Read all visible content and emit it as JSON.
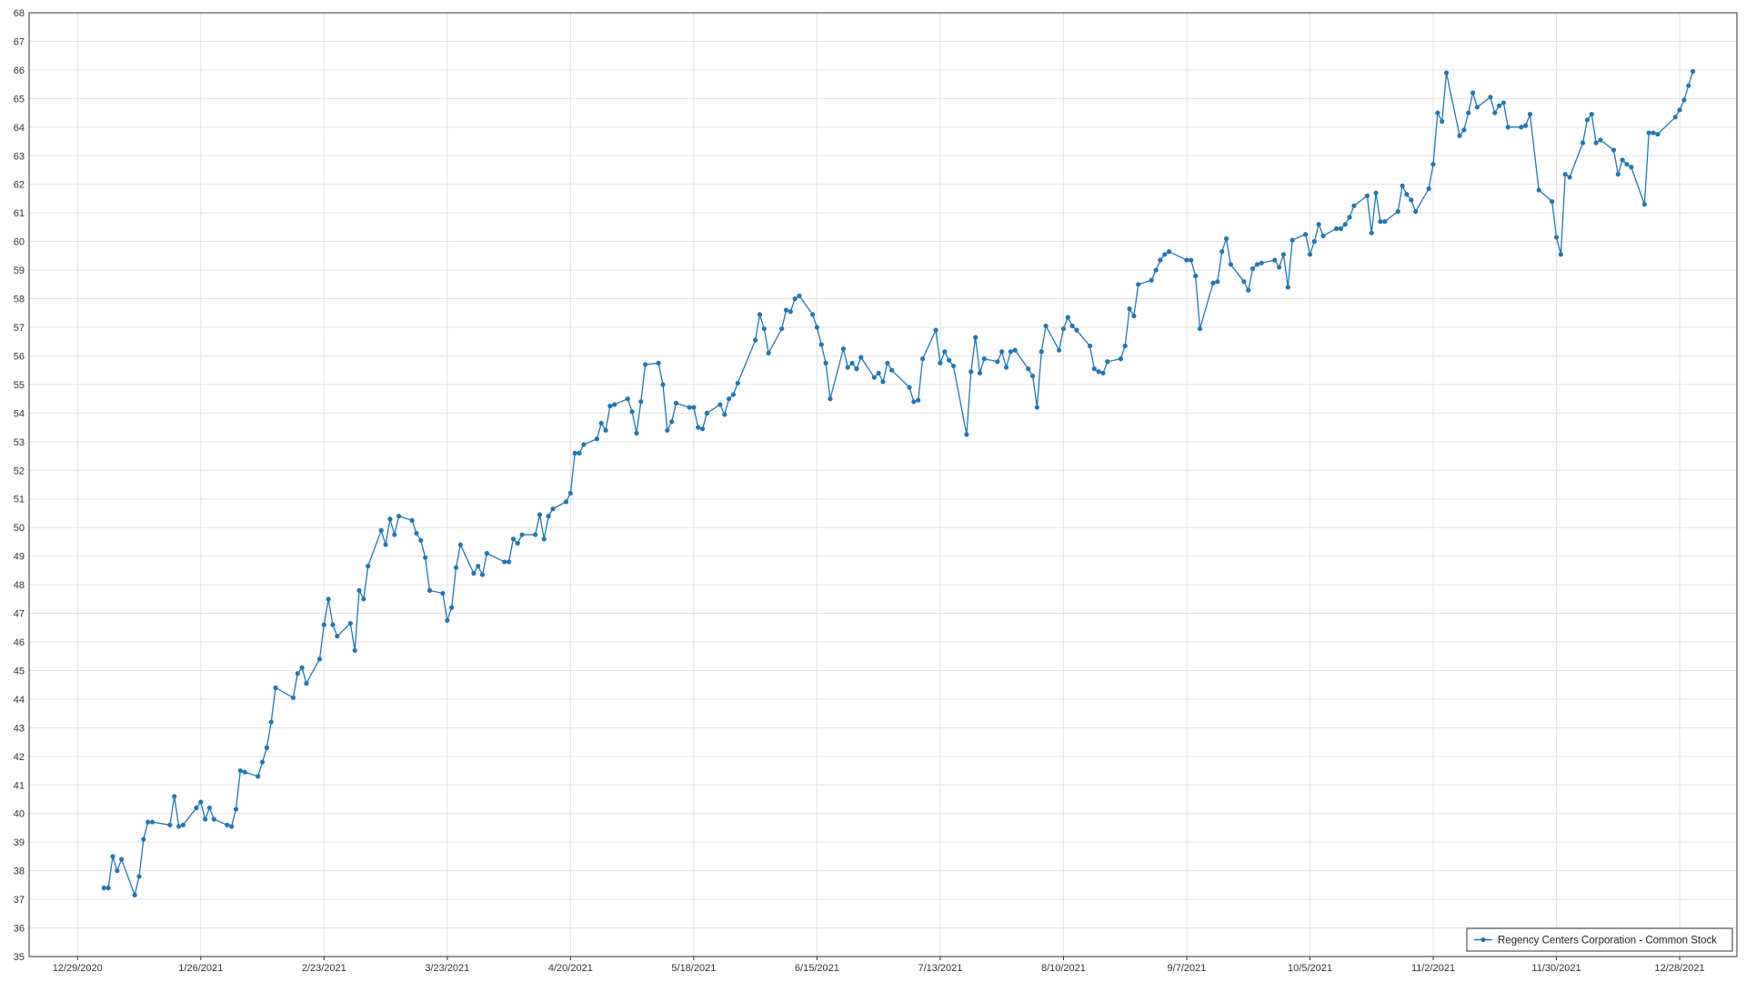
{
  "chart_data": {
    "type": "line",
    "title": "",
    "xlabel": "",
    "ylabel": "",
    "ylim": [
      35,
      68
    ],
    "xlim": [
      "2020-12-18",
      "2022-01-10"
    ],
    "yticks": [
      35,
      36,
      37,
      38,
      39,
      40,
      41,
      42,
      43,
      44,
      45,
      46,
      47,
      48,
      49,
      50,
      51,
      52,
      53,
      54,
      55,
      56,
      57,
      58,
      59,
      60,
      61,
      62,
      63,
      64,
      65,
      66,
      67,
      68
    ],
    "xticks": [
      {
        "date": "2020-12-29",
        "label": "12/29/2020"
      },
      {
        "date": "2021-01-26",
        "label": "1/26/2021"
      },
      {
        "date": "2021-02-23",
        "label": "2/23/2021"
      },
      {
        "date": "2021-03-23",
        "label": "3/23/2021"
      },
      {
        "date": "2021-04-20",
        "label": "4/20/2021"
      },
      {
        "date": "2021-05-18",
        "label": "5/18/2021"
      },
      {
        "date": "2021-06-15",
        "label": "6/15/2021"
      },
      {
        "date": "2021-07-13",
        "label": "7/13/2021"
      },
      {
        "date": "2021-08-10",
        "label": "8/10/2021"
      },
      {
        "date": "2021-09-07",
        "label": "9/7/2021"
      },
      {
        "date": "2021-10-05",
        "label": "10/5/2021"
      },
      {
        "date": "2021-11-02",
        "label": "11/2/2021"
      },
      {
        "date": "2021-11-30",
        "label": "11/30/2021"
      },
      {
        "date": "2021-12-28",
        "label": "12/28/2021"
      }
    ],
    "grid": true,
    "legend_position": "bottom-right",
    "colors": {
      "series": "#1f77b4",
      "grid": "#e2e2e2",
      "axis": "#333333"
    },
    "series": [
      {
        "name": "Regency Centers Corporation - Common Stock",
        "points": [
          [
            "2021-01-04",
            37.4
          ],
          [
            "2021-01-05",
            37.4
          ],
          [
            "2021-01-06",
            38.5
          ],
          [
            "2021-01-07",
            38.0
          ],
          [
            "2021-01-08",
            38.4
          ],
          [
            "2021-01-11",
            37.15
          ],
          [
            "2021-01-12",
            37.8
          ],
          [
            "2021-01-13",
            39.1
          ],
          [
            "2021-01-14",
            39.7
          ],
          [
            "2021-01-15",
            39.7
          ],
          [
            "2021-01-19",
            39.6
          ],
          [
            "2021-01-20",
            40.6
          ],
          [
            "2021-01-21",
            39.55
          ],
          [
            "2021-01-22",
            39.6
          ],
          [
            "2021-01-25",
            40.2
          ],
          [
            "2021-01-26",
            40.4
          ],
          [
            "2021-01-27",
            39.8
          ],
          [
            "2021-01-28",
            40.2
          ],
          [
            "2021-01-29",
            39.8
          ],
          [
            "2021-02-01",
            39.6
          ],
          [
            "2021-02-02",
            39.55
          ],
          [
            "2021-02-03",
            40.15
          ],
          [
            "2021-02-04",
            41.5
          ],
          [
            "2021-02-05",
            41.45
          ],
          [
            "2021-02-08",
            41.3
          ],
          [
            "2021-02-09",
            41.8
          ],
          [
            "2021-02-10",
            42.3
          ],
          [
            "2021-02-11",
            43.2
          ],
          [
            "2021-02-12",
            44.4
          ],
          [
            "2021-02-16",
            44.05
          ],
          [
            "2021-02-17",
            44.9
          ],
          [
            "2021-02-18",
            45.1
          ],
          [
            "2021-02-19",
            44.55
          ],
          [
            "2021-02-22",
            45.4
          ],
          [
            "2021-02-23",
            46.6
          ],
          [
            "2021-02-24",
            47.5
          ],
          [
            "2021-02-25",
            46.6
          ],
          [
            "2021-02-26",
            46.2
          ],
          [
            "2021-03-01",
            46.65
          ],
          [
            "2021-03-02",
            45.7
          ],
          [
            "2021-03-03",
            47.8
          ],
          [
            "2021-03-04",
            47.5
          ],
          [
            "2021-03-05",
            48.65
          ],
          [
            "2021-03-08",
            49.9
          ],
          [
            "2021-03-09",
            49.4
          ],
          [
            "2021-03-10",
            50.3
          ],
          [
            "2021-03-11",
            49.75
          ],
          [
            "2021-03-12",
            50.4
          ],
          [
            "2021-03-15",
            50.25
          ],
          [
            "2021-03-16",
            49.8
          ],
          [
            "2021-03-17",
            49.55
          ],
          [
            "2021-03-18",
            48.95
          ],
          [
            "2021-03-19",
            47.8
          ],
          [
            "2021-03-22",
            47.7
          ],
          [
            "2021-03-23",
            46.75
          ],
          [
            "2021-03-24",
            47.2
          ],
          [
            "2021-03-25",
            48.6
          ],
          [
            "2021-03-26",
            49.4
          ],
          [
            "2021-03-29",
            48.4
          ],
          [
            "2021-03-30",
            48.65
          ],
          [
            "2021-03-31",
            48.35
          ],
          [
            "2021-04-01",
            49.1
          ],
          [
            "2021-04-05",
            48.8
          ],
          [
            "2021-04-06",
            48.8
          ],
          [
            "2021-04-07",
            49.6
          ],
          [
            "2021-04-08",
            49.45
          ],
          [
            "2021-04-09",
            49.75
          ],
          [
            "2021-04-12",
            49.75
          ],
          [
            "2021-04-13",
            50.45
          ],
          [
            "2021-04-14",
            49.6
          ],
          [
            "2021-04-15",
            50.4
          ],
          [
            "2021-04-16",
            50.65
          ],
          [
            "2021-04-19",
            50.9
          ],
          [
            "2021-04-20",
            51.2
          ],
          [
            "2021-04-21",
            52.6
          ],
          [
            "2021-04-22",
            52.6
          ],
          [
            "2021-04-23",
            52.9
          ],
          [
            "2021-04-26",
            53.1
          ],
          [
            "2021-04-27",
            53.65
          ],
          [
            "2021-04-28",
            53.4
          ],
          [
            "2021-04-29",
            54.25
          ],
          [
            "2021-04-30",
            54.3
          ],
          [
            "2021-05-03",
            54.5
          ],
          [
            "2021-05-04",
            54.05
          ],
          [
            "2021-05-05",
            53.3
          ],
          [
            "2021-05-06",
            54.4
          ],
          [
            "2021-05-07",
            55.7
          ],
          [
            "2021-05-10",
            55.75
          ],
          [
            "2021-05-11",
            55.0
          ],
          [
            "2021-05-12",
            53.4
          ],
          [
            "2021-05-13",
            53.7
          ],
          [
            "2021-05-14",
            54.35
          ],
          [
            "2021-05-17",
            54.2
          ],
          [
            "2021-05-18",
            54.2
          ],
          [
            "2021-05-19",
            53.5
          ],
          [
            "2021-05-20",
            53.45
          ],
          [
            "2021-05-21",
            54.0
          ],
          [
            "2021-05-24",
            54.3
          ],
          [
            "2021-05-25",
            53.95
          ],
          [
            "2021-05-26",
            54.5
          ],
          [
            "2021-05-27",
            54.65
          ],
          [
            "2021-05-28",
            55.05
          ],
          [
            "2021-06-01",
            56.55
          ],
          [
            "2021-06-02",
            57.45
          ],
          [
            "2021-06-03",
            56.95
          ],
          [
            "2021-06-04",
            56.1
          ],
          [
            "2021-06-07",
            56.95
          ],
          [
            "2021-06-08",
            57.6
          ],
          [
            "2021-06-09",
            57.55
          ],
          [
            "2021-06-10",
            58.0
          ],
          [
            "2021-06-11",
            58.1
          ],
          [
            "2021-06-14",
            57.45
          ],
          [
            "2021-06-15",
            57.0
          ],
          [
            "2021-06-16",
            56.4
          ],
          [
            "2021-06-17",
            55.75
          ],
          [
            "2021-06-18",
            54.5
          ],
          [
            "2021-06-21",
            56.25
          ],
          [
            "2021-06-22",
            55.6
          ],
          [
            "2021-06-23",
            55.75
          ],
          [
            "2021-06-24",
            55.55
          ],
          [
            "2021-06-25",
            55.95
          ],
          [
            "2021-06-28",
            55.25
          ],
          [
            "2021-06-29",
            55.4
          ],
          [
            "2021-06-30",
            55.1
          ],
          [
            "2021-07-01",
            55.75
          ],
          [
            "2021-07-02",
            55.5
          ],
          [
            "2021-07-06",
            54.9
          ],
          [
            "2021-07-07",
            54.4
          ],
          [
            "2021-07-08",
            54.45
          ],
          [
            "2021-07-09",
            55.9
          ],
          [
            "2021-07-12",
            56.9
          ],
          [
            "2021-07-13",
            55.75
          ],
          [
            "2021-07-14",
            56.15
          ],
          [
            "2021-07-15",
            55.85
          ],
          [
            "2021-07-16",
            55.65
          ],
          [
            "2021-07-19",
            53.25
          ],
          [
            "2021-07-20",
            55.45
          ],
          [
            "2021-07-21",
            56.65
          ],
          [
            "2021-07-22",
            55.4
          ],
          [
            "2021-07-23",
            55.9
          ],
          [
            "2021-07-26",
            55.8
          ],
          [
            "2021-07-27",
            56.15
          ],
          [
            "2021-07-28",
            55.6
          ],
          [
            "2021-07-29",
            56.15
          ],
          [
            "2021-07-30",
            56.2
          ],
          [
            "2021-08-02",
            55.55
          ],
          [
            "2021-08-03",
            55.3
          ],
          [
            "2021-08-04",
            54.2
          ],
          [
            "2021-08-05",
            56.15
          ],
          [
            "2021-08-06",
            57.05
          ],
          [
            "2021-08-09",
            56.2
          ],
          [
            "2021-08-10",
            56.95
          ],
          [
            "2021-08-11",
            57.35
          ],
          [
            "2021-08-12",
            57.05
          ],
          [
            "2021-08-13",
            56.9
          ],
          [
            "2021-08-16",
            56.35
          ],
          [
            "2021-08-17",
            55.55
          ],
          [
            "2021-08-18",
            55.45
          ],
          [
            "2021-08-19",
            55.4
          ],
          [
            "2021-08-20",
            55.8
          ],
          [
            "2021-08-23",
            55.9
          ],
          [
            "2021-08-24",
            56.35
          ],
          [
            "2021-08-25",
            57.65
          ],
          [
            "2021-08-26",
            57.4
          ],
          [
            "2021-08-27",
            58.5
          ],
          [
            "2021-08-30",
            58.65
          ],
          [
            "2021-08-31",
            59.0
          ],
          [
            "2021-09-01",
            59.35
          ],
          [
            "2021-09-02",
            59.55
          ],
          [
            "2021-09-03",
            59.65
          ],
          [
            "2021-09-07",
            59.35
          ],
          [
            "2021-09-08",
            59.35
          ],
          [
            "2021-09-09",
            58.8
          ],
          [
            "2021-09-10",
            56.95
          ],
          [
            "2021-09-13",
            58.55
          ],
          [
            "2021-09-14",
            58.6
          ],
          [
            "2021-09-15",
            59.65
          ],
          [
            "2021-09-16",
            60.1
          ],
          [
            "2021-09-17",
            59.2
          ],
          [
            "2021-09-20",
            58.6
          ],
          [
            "2021-09-21",
            58.3
          ],
          [
            "2021-09-22",
            59.05
          ],
          [
            "2021-09-23",
            59.2
          ],
          [
            "2021-09-24",
            59.25
          ],
          [
            "2021-09-27",
            59.35
          ],
          [
            "2021-09-28",
            59.1
          ],
          [
            "2021-09-29",
            59.55
          ],
          [
            "2021-09-30",
            58.4
          ],
          [
            "2021-10-01",
            60.05
          ],
          [
            "2021-10-04",
            60.25
          ],
          [
            "2021-10-05",
            59.55
          ],
          [
            "2021-10-06",
            60.0
          ],
          [
            "2021-10-07",
            60.6
          ],
          [
            "2021-10-08",
            60.2
          ],
          [
            "2021-10-11",
            60.45
          ],
          [
            "2021-10-12",
            60.45
          ],
          [
            "2021-10-13",
            60.6
          ],
          [
            "2021-10-14",
            60.85
          ],
          [
            "2021-10-15",
            61.25
          ],
          [
            "2021-10-18",
            61.6
          ],
          [
            "2021-10-19",
            60.3
          ],
          [
            "2021-10-20",
            61.7
          ],
          [
            "2021-10-21",
            60.7
          ],
          [
            "2021-10-22",
            60.7
          ],
          [
            "2021-10-25",
            61.05
          ],
          [
            "2021-10-26",
            61.95
          ],
          [
            "2021-10-27",
            61.65
          ],
          [
            "2021-10-28",
            61.45
          ],
          [
            "2021-10-29",
            61.05
          ],
          [
            "2021-11-01",
            61.85
          ],
          [
            "2021-11-02",
            62.7
          ],
          [
            "2021-11-03",
            64.5
          ],
          [
            "2021-11-04",
            64.2
          ],
          [
            "2021-11-05",
            65.9
          ],
          [
            "2021-11-08",
            63.7
          ],
          [
            "2021-11-09",
            63.9
          ],
          [
            "2021-11-10",
            64.5
          ],
          [
            "2021-11-11",
            65.2
          ],
          [
            "2021-11-12",
            64.7
          ],
          [
            "2021-11-15",
            65.05
          ],
          [
            "2021-11-16",
            64.5
          ],
          [
            "2021-11-17",
            64.75
          ],
          [
            "2021-11-18",
            64.85
          ],
          [
            "2021-11-19",
            64.0
          ],
          [
            "2021-11-22",
            64.0
          ],
          [
            "2021-11-23",
            64.05
          ],
          [
            "2021-11-24",
            64.45
          ],
          [
            "2021-11-26",
            61.8
          ],
          [
            "2021-11-29",
            61.4
          ],
          [
            "2021-11-30",
            60.15
          ],
          [
            "2021-12-01",
            59.55
          ],
          [
            "2021-12-02",
            62.35
          ],
          [
            "2021-12-03",
            62.25
          ],
          [
            "2021-12-06",
            63.45
          ],
          [
            "2021-12-07",
            64.25
          ],
          [
            "2021-12-08",
            64.45
          ],
          [
            "2021-12-09",
            63.45
          ],
          [
            "2021-12-10",
            63.55
          ],
          [
            "2021-12-13",
            63.2
          ],
          [
            "2021-12-14",
            62.35
          ],
          [
            "2021-12-15",
            62.85
          ],
          [
            "2021-12-16",
            62.7
          ],
          [
            "2021-12-17",
            62.6
          ],
          [
            "2021-12-20",
            61.3
          ],
          [
            "2021-12-21",
            63.8
          ],
          [
            "2021-12-22",
            63.8
          ],
          [
            "2021-12-23",
            63.75
          ],
          [
            "2021-12-27",
            64.35
          ],
          [
            "2021-12-28",
            64.6
          ],
          [
            "2021-12-29",
            64.95
          ],
          [
            "2021-12-30",
            65.45
          ],
          [
            "2021-12-31",
            65.95
          ]
        ]
      }
    ]
  }
}
